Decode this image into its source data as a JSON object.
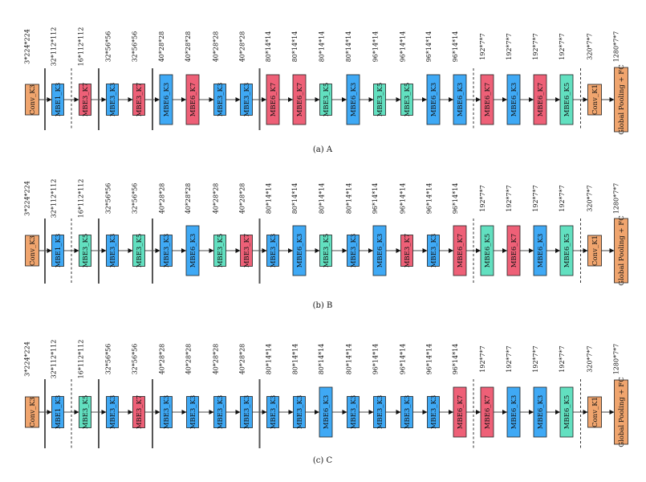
{
  "colors": {
    "conv": "#F0A56E",
    "mbe_k3": "#3FA9F5",
    "mbe_k5": "#62E0C0",
    "mbe_k7": "#EE6077",
    "fc": "#F0A56E"
  },
  "networks": [
    {
      "caption": "(a)  A",
      "blocks": [
        {
          "label": "Conv_K3",
          "kind": "conv",
          "size": "s",
          "dim": "3*224*224"
        },
        {
          "label": "MBE1_K3",
          "kind": "mbe_k3",
          "size": "m",
          "dim": "32*112*112"
        },
        {
          "label": "MBE3_K7",
          "kind": "mbe_k7",
          "size": "m",
          "dim": "16*112*112"
        },
        {
          "label": "MBE3_K3",
          "kind": "mbe_k3",
          "size": "m",
          "dim": "32*56*56"
        },
        {
          "label": "MBE3_K7",
          "kind": "mbe_k7",
          "size": "m",
          "dim": "32*56*56"
        },
        {
          "label": "MBE6_K3",
          "kind": "mbe_k3",
          "size": "l",
          "dim": "40*28*28"
        },
        {
          "label": "MBE6_K7",
          "kind": "mbe_k7",
          "size": "l",
          "dim": "40*28*28"
        },
        {
          "label": "MBE3_K3",
          "kind": "mbe_k3",
          "size": "m",
          "dim": "40*28*28"
        },
        {
          "label": "MBE3_K3",
          "kind": "mbe_k3",
          "size": "m",
          "dim": "40*28*28"
        },
        {
          "label": "MBE6_K7",
          "kind": "mbe_k7",
          "size": "l",
          "dim": "80*14*14"
        },
        {
          "label": "MBE6_K7",
          "kind": "mbe_k7",
          "size": "l",
          "dim": "80*14*14"
        },
        {
          "label": "MBE3_K5",
          "kind": "mbe_k5",
          "size": "m",
          "dim": "80*14*14"
        },
        {
          "label": "MBE6_K3",
          "kind": "mbe_k3",
          "size": "l",
          "dim": "80*14*14"
        },
        {
          "label": "MBE3_K5",
          "kind": "mbe_k5",
          "size": "m",
          "dim": "96*14*14"
        },
        {
          "label": "MBE3_K5",
          "kind": "mbe_k5",
          "size": "m",
          "dim": "96*14*14"
        },
        {
          "label": "MBE6_K3",
          "kind": "mbe_k3",
          "size": "l",
          "dim": "96*14*14"
        },
        {
          "label": "MBE6_K3",
          "kind": "mbe_k3",
          "size": "l",
          "dim": "96*14*14"
        },
        {
          "label": "MBE6_K7",
          "kind": "mbe_k7",
          "size": "l",
          "dim": "192*7*7"
        },
        {
          "label": "MBE6_K3",
          "kind": "mbe_k3",
          "size": "l",
          "dim": "192*7*7"
        },
        {
          "label": "MBE6_K7",
          "kind": "mbe_k7",
          "size": "l",
          "dim": "192*7*7"
        },
        {
          "label": "MBE6_K5",
          "kind": "mbe_k5",
          "size": "l",
          "dim": "192*7*7"
        },
        {
          "label": "Conv_K1",
          "kind": "conv",
          "size": "s",
          "dim": "320*7*7"
        },
        {
          "label": "Global Pooling + FC",
          "kind": "fc",
          "size": "xl",
          "dim": "1280*7*7"
        }
      ]
    },
    {
      "caption": "(b)  B",
      "blocks": [
        {
          "label": "Conv_K3",
          "kind": "conv",
          "size": "s",
          "dim": "3*224*224"
        },
        {
          "label": "MBE1_K3",
          "kind": "mbe_k3",
          "size": "m",
          "dim": "32*112*112"
        },
        {
          "label": "MBE3_K5",
          "kind": "mbe_k5",
          "size": "m",
          "dim": "16*112*112"
        },
        {
          "label": "MBE3_K3",
          "kind": "mbe_k3",
          "size": "m",
          "dim": "32*56*56"
        },
        {
          "label": "MBE3_K5",
          "kind": "mbe_k5",
          "size": "m",
          "dim": "32*56*56"
        },
        {
          "label": "MBE3_K3",
          "kind": "mbe_k3",
          "size": "m",
          "dim": "40*28*28"
        },
        {
          "label": "MBE6_K3",
          "kind": "mbe_k3",
          "size": "l",
          "dim": "40*28*28"
        },
        {
          "label": "MBE3_K5",
          "kind": "mbe_k5",
          "size": "m",
          "dim": "40*28*28"
        },
        {
          "label": "MBE3_K7",
          "kind": "mbe_k7",
          "size": "m",
          "dim": "40*28*28"
        },
        {
          "label": "MBE3_K3",
          "kind": "mbe_k3",
          "size": "m",
          "dim": "80*14*14"
        },
        {
          "label": "MBE6_K3",
          "kind": "mbe_k3",
          "size": "l",
          "dim": "80*14*14"
        },
        {
          "label": "MBE3_K5",
          "kind": "mbe_k5",
          "size": "m",
          "dim": "80*14*14"
        },
        {
          "label": "MBE3_K3",
          "kind": "mbe_k3",
          "size": "m",
          "dim": "80*14*14"
        },
        {
          "label": "MBE6_K3",
          "kind": "mbe_k3",
          "size": "l",
          "dim": "96*14*14"
        },
        {
          "label": "MBE3_K7",
          "kind": "mbe_k7",
          "size": "m",
          "dim": "96*14*14"
        },
        {
          "label": "MBE3_K3",
          "kind": "mbe_k3",
          "size": "m",
          "dim": "96*14*14"
        },
        {
          "label": "MBE6_K7",
          "kind": "mbe_k7",
          "size": "l",
          "dim": "96*14*14"
        },
        {
          "label": "MBE6_K5",
          "kind": "mbe_k5",
          "size": "l",
          "dim": "192*7*7"
        },
        {
          "label": "MBE6_K7",
          "kind": "mbe_k7",
          "size": "l",
          "dim": "192*7*7"
        },
        {
          "label": "MBE6_K3",
          "kind": "mbe_k3",
          "size": "l",
          "dim": "192*7*7"
        },
        {
          "label": "MBE6_K5",
          "kind": "mbe_k5",
          "size": "l",
          "dim": "192*7*7"
        },
        {
          "label": "Conv_K1",
          "kind": "conv",
          "size": "s",
          "dim": "320*7*7"
        },
        {
          "label": "Global Pooling + FC",
          "kind": "fc",
          "size": "xl",
          "dim": "1280*7*7"
        }
      ]
    },
    {
      "caption": "(c)  C",
      "blocks": [
        {
          "label": "Conv_K3",
          "kind": "conv",
          "size": "s",
          "dim": "3*224*224"
        },
        {
          "label": "MBE1_K3",
          "kind": "mbe_k3",
          "size": "m",
          "dim": "32*112*112"
        },
        {
          "label": "MBE3_K5",
          "kind": "mbe_k5",
          "size": "m",
          "dim": "16*112*112"
        },
        {
          "label": "MBE3_K3",
          "kind": "mbe_k3",
          "size": "m",
          "dim": "32*56*56"
        },
        {
          "label": "MBE3_K7",
          "kind": "mbe_k7",
          "size": "m",
          "dim": "32*56*56"
        },
        {
          "label": "MBE3_K3",
          "kind": "mbe_k3",
          "size": "m",
          "dim": "40*28*28"
        },
        {
          "label": "MBE3_K3",
          "kind": "mbe_k3",
          "size": "m",
          "dim": "40*28*28"
        },
        {
          "label": "MBE3_K3",
          "kind": "mbe_k3",
          "size": "m",
          "dim": "40*28*28"
        },
        {
          "label": "MBE3_K3",
          "kind": "mbe_k3",
          "size": "m",
          "dim": "40*28*28"
        },
        {
          "label": "MBE3_K3",
          "kind": "mbe_k3",
          "size": "m",
          "dim": "80*14*14"
        },
        {
          "label": "MBE3_K3",
          "kind": "mbe_k3",
          "size": "m",
          "dim": "80*14*14"
        },
        {
          "label": "MBE6_K3",
          "kind": "mbe_k3",
          "size": "l",
          "dim": "80*14*14"
        },
        {
          "label": "MBE3_K3",
          "kind": "mbe_k3",
          "size": "m",
          "dim": "80*14*14"
        },
        {
          "label": "MBE3_K3",
          "kind": "mbe_k3",
          "size": "m",
          "dim": "96*14*14"
        },
        {
          "label": "MBE3_K3",
          "kind": "mbe_k3",
          "size": "m",
          "dim": "96*14*14"
        },
        {
          "label": "MBE3_K3",
          "kind": "mbe_k3",
          "size": "m",
          "dim": "96*14*14"
        },
        {
          "label": "MBE6_K7",
          "kind": "mbe_k7",
          "size": "l",
          "dim": "96*14*14"
        },
        {
          "label": "MBE6_K7",
          "kind": "mbe_k7",
          "size": "l",
          "dim": "192*7*7"
        },
        {
          "label": "MBE6_K3",
          "kind": "mbe_k3",
          "size": "l",
          "dim": "192*7*7"
        },
        {
          "label": "MBE6_K3",
          "kind": "mbe_k3",
          "size": "l",
          "dim": "192*7*7"
        },
        {
          "label": "MBE6_K5",
          "kind": "mbe_k5",
          "size": "l",
          "dim": "192*7*7"
        },
        {
          "label": "Conv_K1",
          "kind": "conv",
          "size": "s",
          "dim": "320*7*7"
        },
        {
          "label": "Global Pooling + FC",
          "kind": "fc",
          "size": "xl",
          "dim": "1280*7*7"
        }
      ]
    }
  ]
}
